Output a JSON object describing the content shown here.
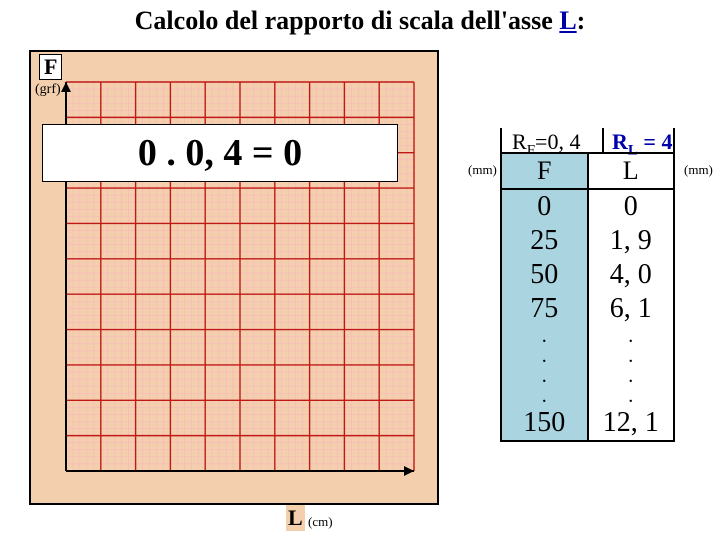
{
  "title": {
    "pre": "Calcolo del rapporto di scala dell'asse ",
    "under": "L",
    "post": ":"
  },
  "y_axis": {
    "label": "F",
    "unit": "(grf)"
  },
  "x_axis": {
    "label": "L",
    "unit": "(cm)"
  },
  "formula": "0 . 0, 4 = 0",
  "ratios": {
    "rf": {
      "symbol": "R",
      "sub": "F",
      "eq": "=0, 4"
    },
    "rl": {
      "symbol": "R",
      "sub": "L",
      "eq": " = 4"
    }
  },
  "table": {
    "unit_left": "(mm)",
    "unit_right": "(mm)",
    "header": {
      "f": "F",
      "l": "L"
    },
    "rows": [
      {
        "f": "0",
        "l": "0"
      },
      {
        "f": "25",
        "l": "1, 9"
      },
      {
        "f": "50",
        "l": "4, 0"
      },
      {
        "f": "75",
        "l": "6, 1"
      },
      {
        "f": ".",
        "l": ".",
        "dot": true
      },
      {
        "f": ".",
        "l": ".",
        "dot": true
      },
      {
        "f": ".",
        "l": ".",
        "dot": true
      },
      {
        "f": ".",
        "l": ".",
        "dot": true
      },
      {
        "f": "150",
        "l": "12, 1"
      }
    ]
  },
  "grid": {
    "cols": 10,
    "rows": 11,
    "fine_subdiv": 5,
    "bg_color": "#f4cfae",
    "fine_color": "#f7b7bb",
    "major_color": "#c01818",
    "axis_color": "#000000"
  },
  "colors": {
    "highlight_fill": "#a9d4e0",
    "link_blue": "#0000aa"
  }
}
